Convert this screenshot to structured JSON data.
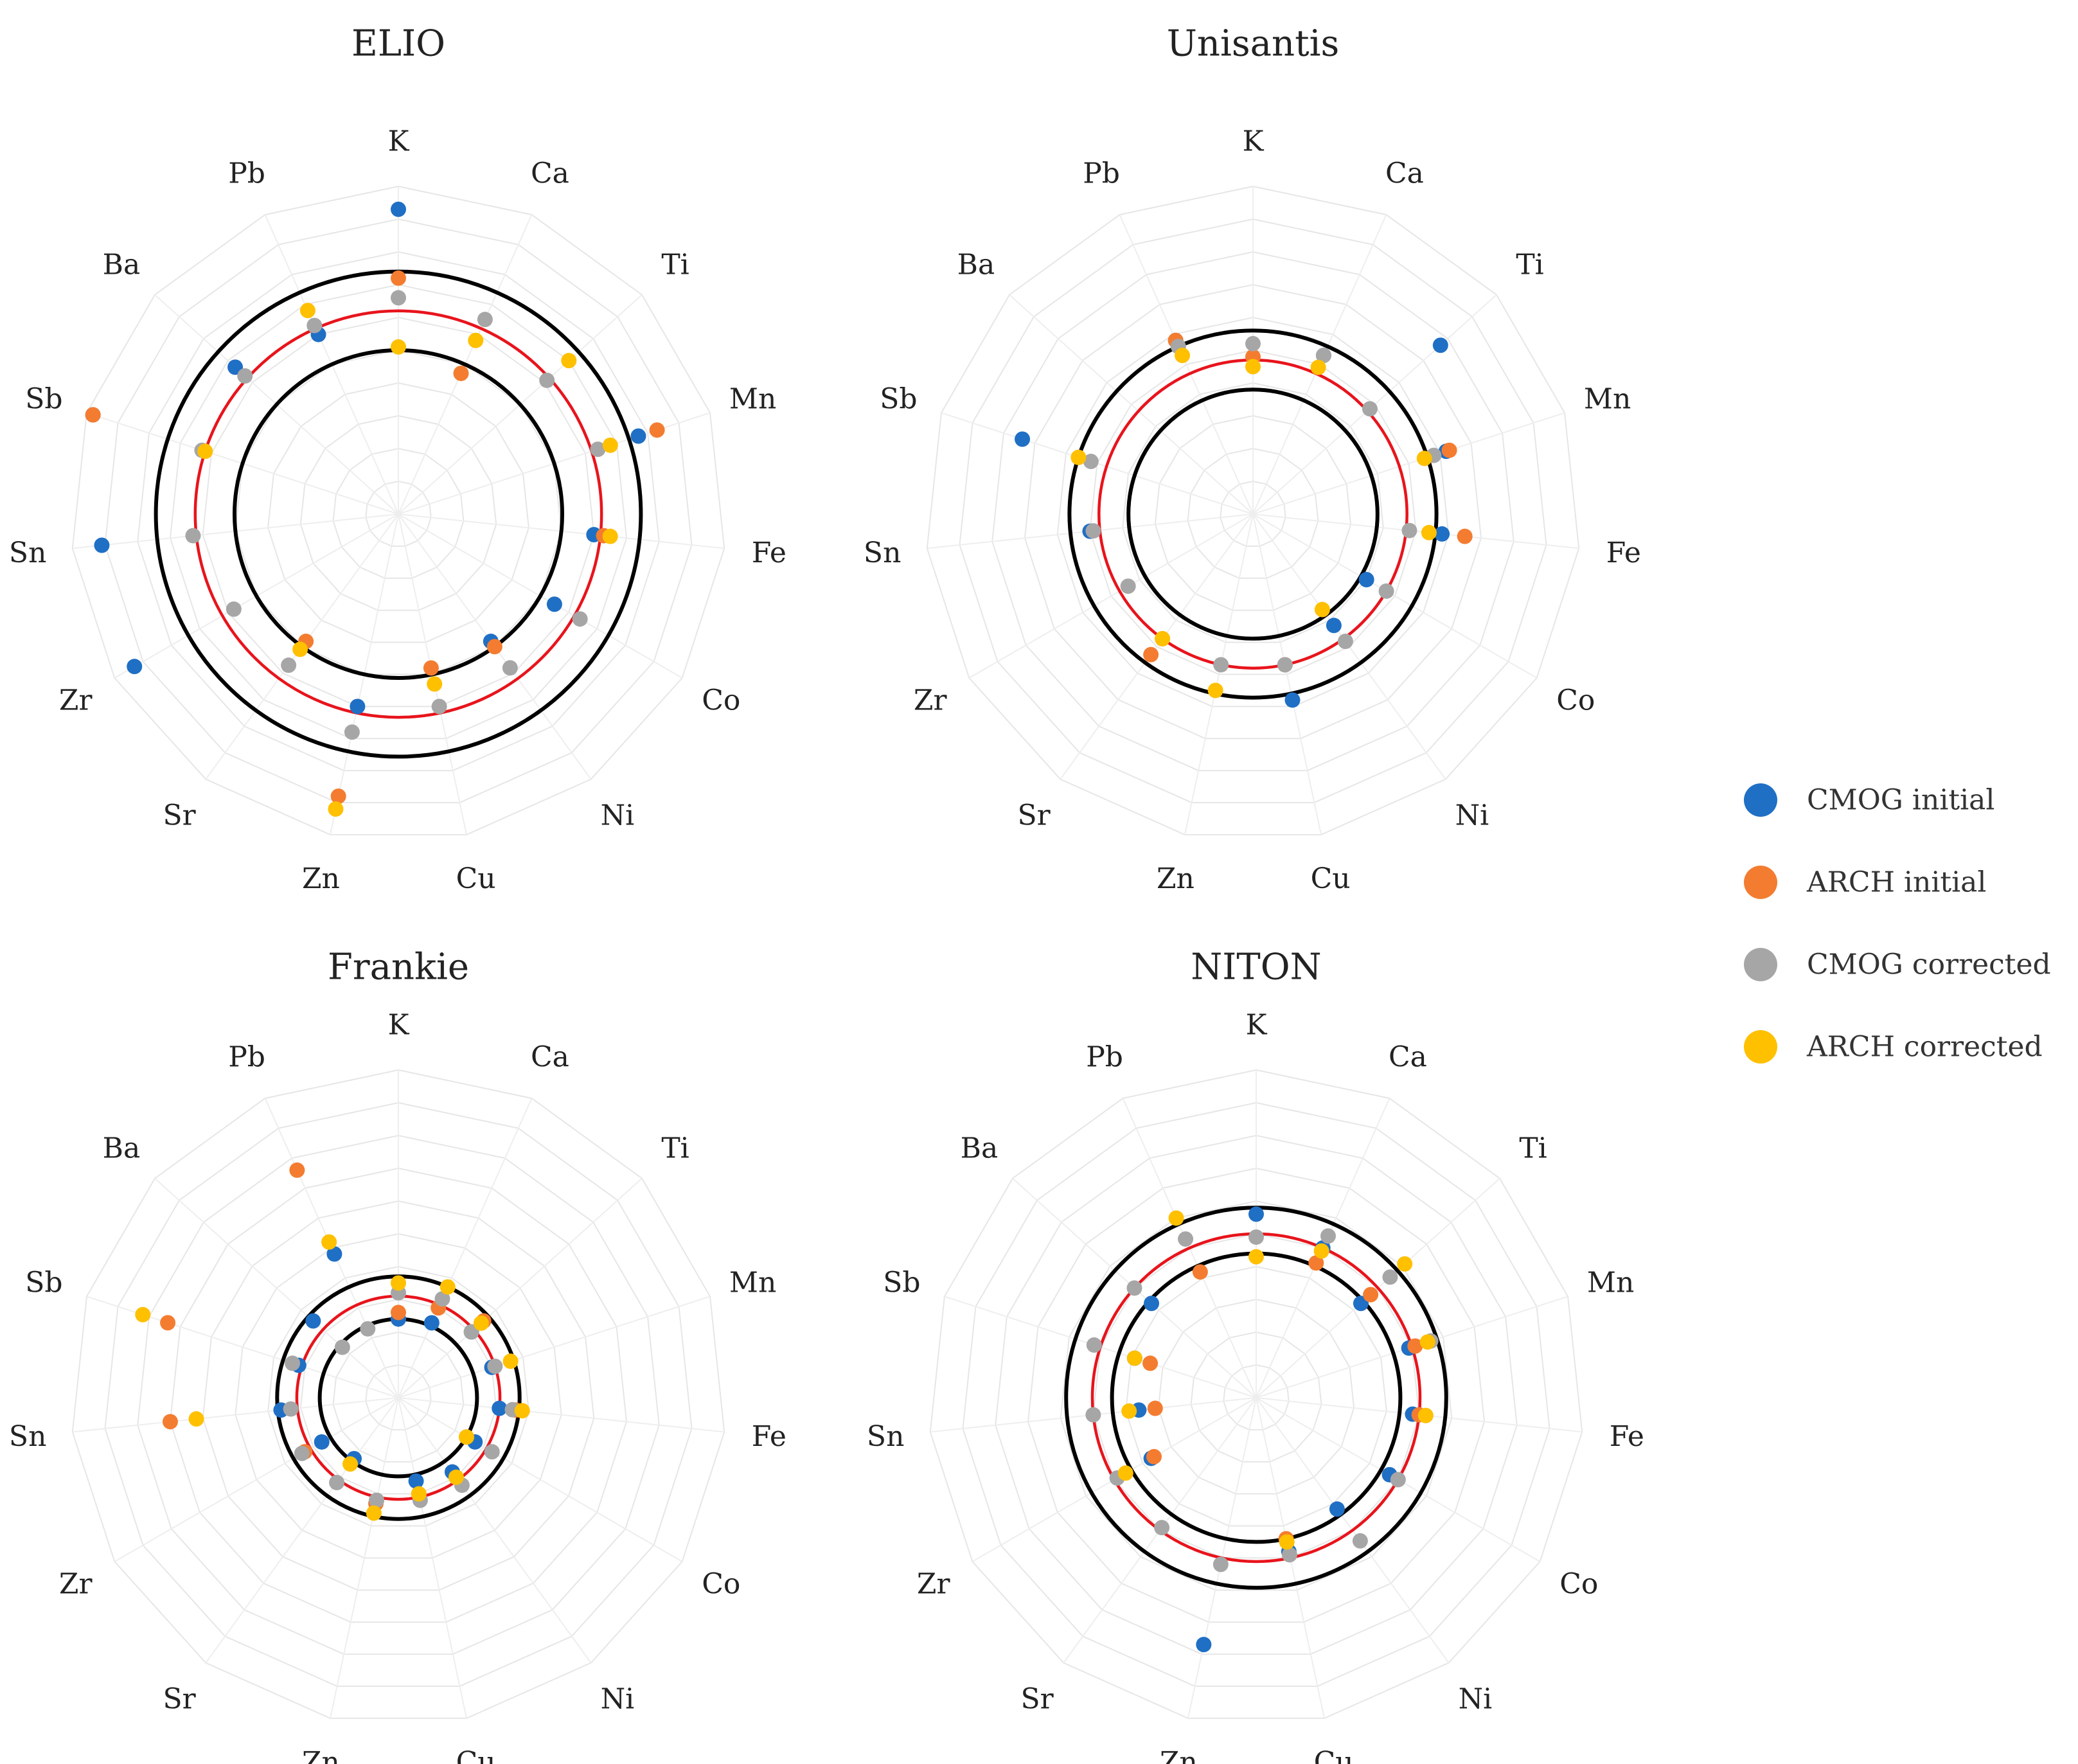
{
  "chart_data": [
    {
      "type": "radar",
      "title": "ELIO",
      "axes": [
        "K",
        "Ca",
        "Ti",
        "Mn",
        "Fe",
        "Co",
        "Ni",
        "Cu",
        "Zn",
        "Sr",
        "Zr",
        "Sn",
        "Sb",
        "Ba",
        "Pb"
      ],
      "rlim": [
        0,
        10
      ],
      "reference_circles": [
        {
          "value": 5,
          "color": "#000000"
        },
        {
          "value": 6.2,
          "color": "#e8141c"
        },
        {
          "value": 7.4,
          "color": "#000000"
        }
      ],
      "series": [
        {
          "name": "CMOG initial",
          "color": "#1f6fc5",
          "values": [
            9.3,
            null,
            null,
            7.7,
            6.0,
            5.5,
            4.8,
            null,
            6.0,
            null,
            9.3,
            9.1,
            9.8,
            6.7,
            6.0
          ]
        },
        {
          "name": "ARCH initial",
          "color": "#f47c30",
          "values": [
            7.2,
            4.7,
            null,
            8.3,
            6.3,
            null,
            5.0,
            4.8,
            8.8,
            4.8,
            null,
            null,
            9.8,
            null,
            null
          ]
        },
        {
          "name": "CMOG corrected",
          "color": "#a6a6a6",
          "values": [
            6.6,
            6.5,
            6.1,
            6.4,
            null,
            6.4,
            5.8,
            6.0,
            6.8,
            5.7,
            5.8,
            6.3,
            6.3,
            6.3,
            6.3
          ]
        },
        {
          "name": "ARCH corrected",
          "color": "#ffc000",
          "values": [
            5.1,
            5.8,
            7.0,
            6.8,
            6.5,
            null,
            null,
            5.3,
            9.2,
            5.1,
            null,
            null,
            6.2,
            null,
            6.8
          ]
        }
      ]
    },
    {
      "type": "radar",
      "title": "Unisantis",
      "axes": [
        "K",
        "Ca",
        "Ti",
        "Mn",
        "Fe",
        "Co",
        "Ni",
        "Cu",
        "Zn",
        "Sr",
        "Zr",
        "Sn",
        "Sb",
        "Ba",
        "Pb"
      ],
      "rlim": [
        0,
        10
      ],
      "reference_circles": [
        {
          "value": 3.8,
          "color": "#000000"
        },
        {
          "value": 4.7,
          "color": "#e8141c"
        },
        {
          "value": 5.6,
          "color": "#000000"
        }
      ],
      "series": [
        {
          "name": "CMOG initial",
          "color": "#1f6fc5",
          "values": [
            null,
            5.3,
            7.7,
            6.2,
            5.8,
            4.0,
            4.2,
            5.8,
            null,
            null,
            null,
            5.0,
            7.4,
            null,
            5.8
          ]
        },
        {
          "name": "ARCH initial",
          "color": "#f47c30",
          "values": [
            4.8,
            null,
            null,
            6.3,
            6.5,
            null,
            null,
            4.7,
            null,
            5.3,
            null,
            null,
            null,
            null,
            5.8
          ]
        },
        {
          "name": "CMOG corrected",
          "color": "#a6a6a6",
          "values": [
            5.2,
            5.3,
            4.8,
            5.8,
            4.8,
            4.7,
            4.8,
            4.7,
            4.7,
            4.7,
            4.4,
            4.9,
            5.2,
            null,
            5.6
          ]
        },
        {
          "name": "ARCH corrected",
          "color": "#ffc000",
          "values": [
            4.5,
            4.9,
            null,
            5.5,
            5.4,
            null,
            3.6,
            null,
            5.5,
            4.7,
            null,
            null,
            5.6,
            null,
            5.3
          ]
        }
      ]
    },
    {
      "type": "radar",
      "title": "Frankie",
      "axes": [
        "K",
        "Ca",
        "Ti",
        "Mn",
        "Fe",
        "Co",
        "Ni",
        "Cu",
        "Zn",
        "Sr",
        "Zr",
        "Sn",
        "Sb",
        "Ba",
        "Pb"
      ],
      "rlim": [
        0,
        10
      ],
      "reference_circles": [
        {
          "value": 2.4,
          "color": "#000000"
        },
        {
          "value": 3.1,
          "color": "#e8141c"
        },
        {
          "value": 3.7,
          "color": "#000000"
        }
      ],
      "series": [
        {
          "name": "CMOG initial",
          "color": "#1f6fc5",
          "values": [
            2.4,
            2.5,
            3.0,
            3.0,
            3.1,
            2.7,
            2.8,
            2.6,
            null,
            2.3,
            2.7,
            3.6,
            3.2,
            3.5,
            4.8
          ]
        },
        {
          "name": "ARCH initial",
          "color": "#f47c30",
          "values": [
            2.6,
            3.0,
            3.5,
            null,
            3.6,
            2.4,
            null,
            3.0,
            3.3,
            null,
            3.3,
            7.0,
            7.4,
            null,
            7.6
          ]
        },
        {
          "name": "CMOG corrected",
          "color": "#a6a6a6",
          "values": [
            3.2,
            3.3,
            3.0,
            3.1,
            3.5,
            3.3,
            3.3,
            3.2,
            3.2,
            3.2,
            3.4,
            3.3,
            3.4,
            2.3,
            2.3
          ]
        },
        {
          "name": "ARCH corrected",
          "color": "#ffc000",
          "values": [
            3.5,
            3.7,
            3.4,
            3.6,
            3.8,
            2.4,
            3.0,
            3.0,
            3.6,
            2.5,
            null,
            6.2,
            8.2,
            null,
            5.2
          ]
        }
      ]
    },
    {
      "type": "radar",
      "title": "NITON",
      "axes": [
        "K",
        "Ca",
        "Ti",
        "Mn",
        "Fe",
        "Co",
        "Ni",
        "Cu",
        "Zn",
        "Sr",
        "Zr",
        "Sn",
        "Sb",
        "Ba",
        "Pb"
      ],
      "rlim": [
        0,
        10
      ],
      "reference_circles": [
        {
          "value": 4.4,
          "color": "#000000"
        },
        {
          "value": 5.0,
          "color": "#e8141c"
        },
        {
          "value": 5.8,
          "color": "#000000"
        }
      ],
      "series": [
        {
          "name": "CMOG initial",
          "color": "#1f6fc5",
          "values": [
            5.6,
            5.0,
            4.3,
            4.9,
            4.8,
            4.7,
            4.2,
            4.8,
            7.7,
            null,
            3.7,
            3.6,
            3.9,
            4.3,
            null
          ]
        },
        {
          "name": "ARCH initial",
          "color": "#f47c30",
          "values": [
            null,
            4.5,
            4.7,
            5.1,
            5.0,
            null,
            null,
            4.4,
            null,
            null,
            3.6,
            3.1,
            3.4,
            null,
            4.2
          ]
        },
        {
          "name": "CMOG corrected",
          "color": "#a6a6a6",
          "values": [
            4.9,
            5.4,
            5.5,
            5.6,
            5.2,
            5.0,
            5.4,
            4.9,
            5.2,
            4.9,
            4.9,
            5.0,
            5.2,
            5.0,
            5.3
          ]
        },
        {
          "name": "ARCH corrected",
          "color": "#ffc000",
          "values": [
            4.3,
            4.9,
            6.1,
            5.5,
            5.2,
            null,
            null,
            4.5,
            null,
            null,
            4.6,
            3.9,
            3.9,
            null,
            6.0
          ]
        }
      ]
    }
  ],
  "legend": [
    {
      "label": "CMOG initial",
      "color": "#1f6fc5"
    },
    {
      "label": "ARCH initial",
      "color": "#f47c30"
    },
    {
      "label": "CMOG corrected",
      "color": "#a6a6a6"
    },
    {
      "label": "ARCH corrected",
      "color": "#ffc000"
    }
  ]
}
